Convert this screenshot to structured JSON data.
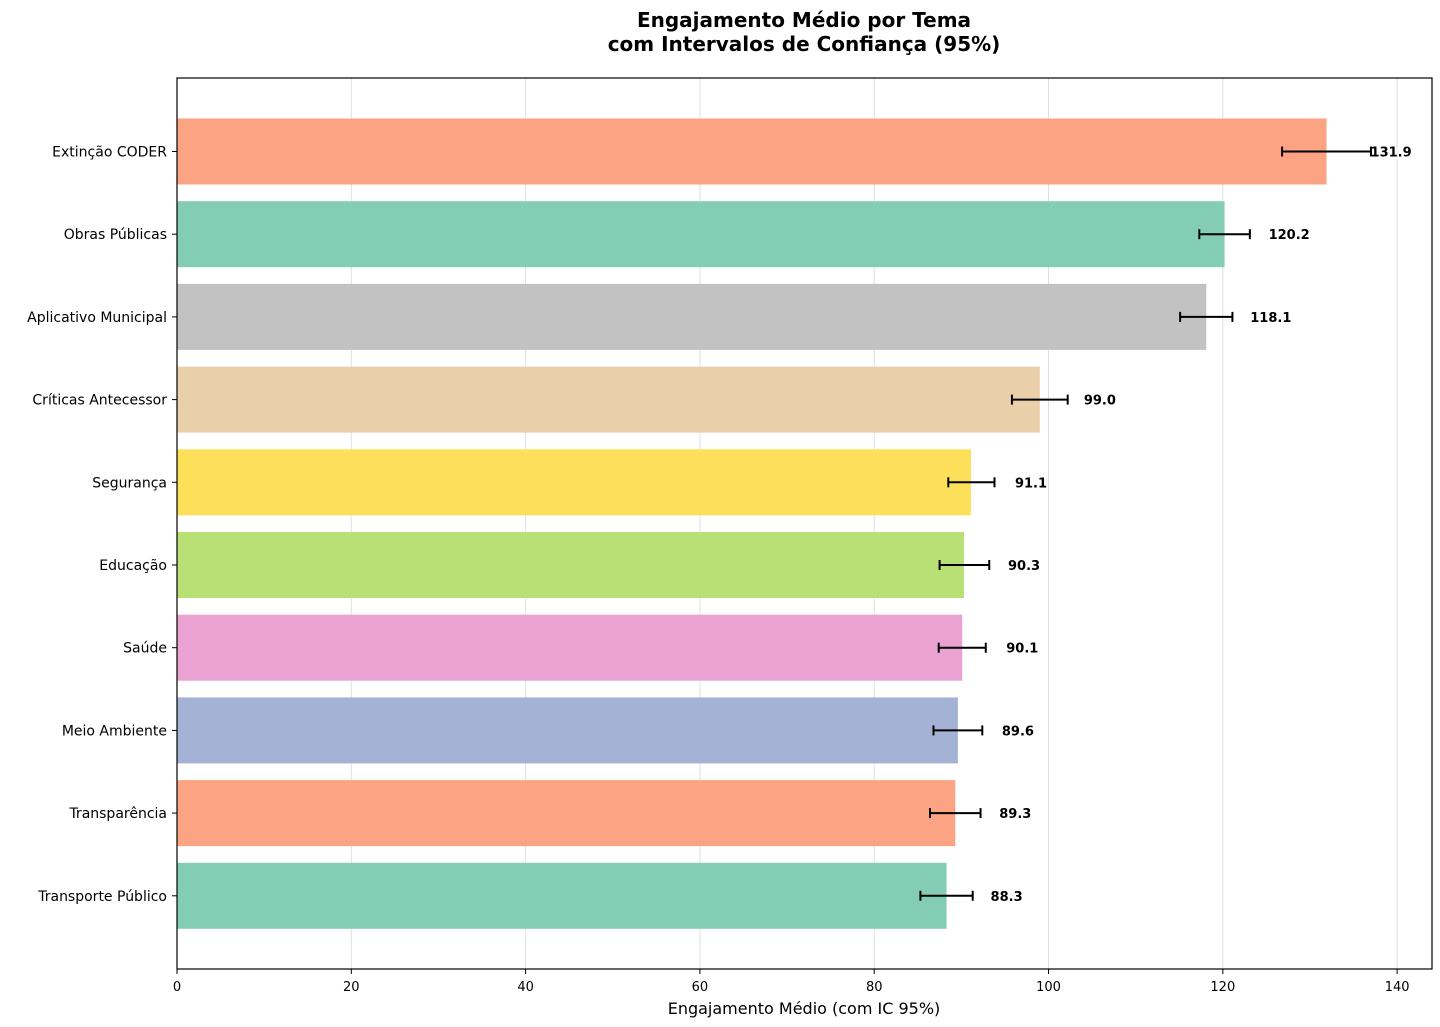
{
  "chart_data": {
    "type": "bar",
    "orientation": "horizontal",
    "title": [
      "Engajamento Médio por Tema",
      "com Intervalos de Confiança (95%)"
    ],
    "xlabel": "Engajamento Médio (com IC 95%)",
    "ylabel": "",
    "xlim": [
      0,
      144
    ],
    "xticks": [
      0,
      20,
      40,
      60,
      80,
      100,
      120,
      140
    ],
    "grid": "vertical",
    "categories": [
      "Extinção CODER",
      "Obras Públicas",
      "Aplicativo Municipal",
      "Críticas Antecessor",
      "Segurança",
      "Educação",
      "Saúde",
      "Meio Ambiente",
      "Transparência",
      "Transporte Público"
    ],
    "values": [
      131.9,
      120.2,
      118.1,
      99.0,
      91.1,
      90.3,
      90.1,
      89.6,
      89.3,
      88.3
    ],
    "value_labels": [
      "131.9",
      "120.2",
      "118.1",
      "99.0",
      "91.1",
      "90.3",
      "90.1",
      "89.6",
      "89.3",
      "88.3"
    ],
    "ci_low": [
      126.8,
      117.3,
      115.1,
      95.8,
      88.5,
      87.5,
      87.4,
      86.8,
      86.4,
      85.3
    ],
    "ci_high": [
      137.0,
      123.1,
      121.1,
      102.2,
      93.8,
      93.2,
      92.8,
      92.4,
      92.2,
      91.3
    ],
    "colors": [
      "#fca384",
      "#84cdb5",
      "#c2c2c2",
      "#eacfab",
      "#fedf5a",
      "#b8e075",
      "#e9a2d1",
      "#a4b2d6",
      "#fca384",
      "#84cdb5"
    ]
  }
}
